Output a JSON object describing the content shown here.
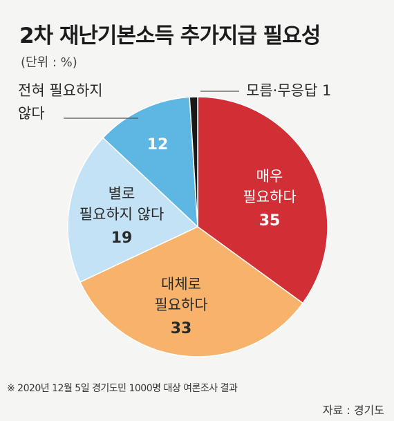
{
  "chart_data": {
    "type": "pie",
    "title": "2차 재난기본소득 추가지급 필요성",
    "unit": "(단위 : %)",
    "slices": [
      {
        "label": "매우\n필요하다",
        "value": 35,
        "color": "#d12e36"
      },
      {
        "label": "대체로\n필요하다",
        "value": 33,
        "color": "#f7b36b"
      },
      {
        "label": "별로\n필요하지 않다",
        "value": 19,
        "color": "#c4e2f6"
      },
      {
        "label": "전혀 필요하지\n않다",
        "value": 12,
        "color": "#5eb6e3"
      },
      {
        "label": "모름·무응답",
        "value": 1,
        "color": "#1a1a1a"
      }
    ]
  },
  "footnote": "※ 2020년 12월 5일 경기도민 1000명 대상 여론조사 결과",
  "source": "자료 : 경기도"
}
